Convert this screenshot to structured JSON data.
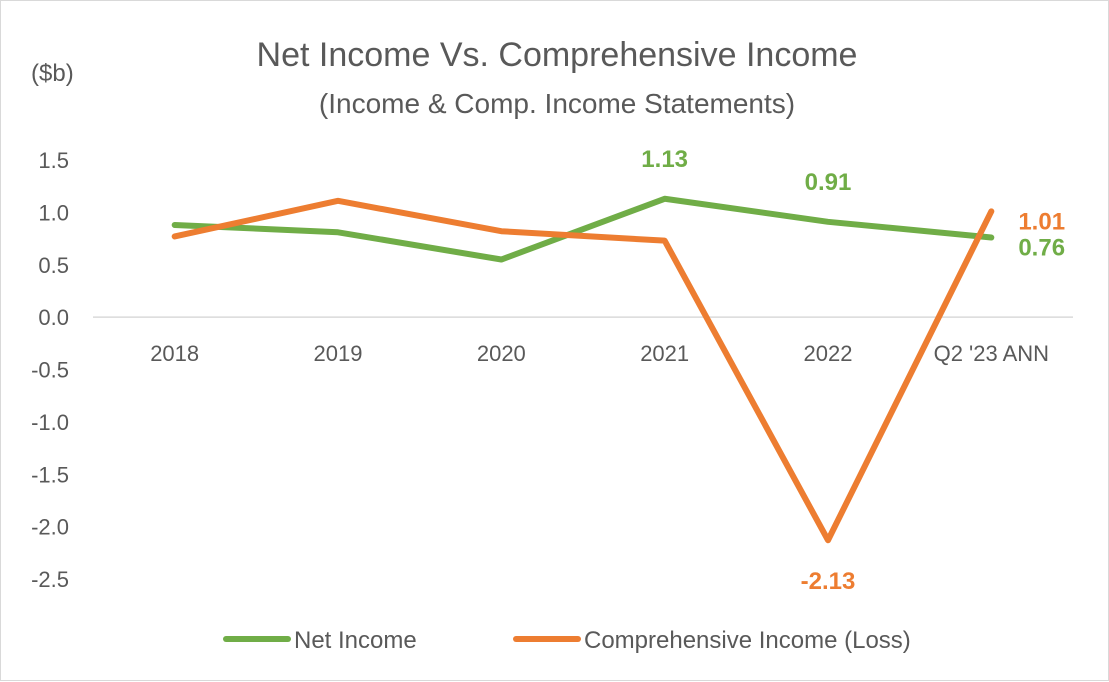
{
  "chart_data": {
    "type": "line",
    "title": "Net Income Vs. Comprehensive Income",
    "subtitle": "(Income & Comp. Income Statements)",
    "ylabel": "($b)",
    "xlabel": "",
    "categories": [
      "2018",
      "2019",
      "2020",
      "2021",
      "2022",
      "Q2 '23 ANN"
    ],
    "ylim": [
      -2.5,
      1.5
    ],
    "yticks": [
      1.5,
      1.0,
      0.5,
      0.0,
      -0.5,
      -1.0,
      -1.5,
      -2.0,
      -2.5
    ],
    "ytick_labels": [
      "1.5",
      "1.0",
      "0.5",
      "0.0",
      "-0.5",
      "-1.0",
      "-1.5",
      "-2.0",
      "-2.5"
    ],
    "grid": false,
    "legend_position": "bottom",
    "series": [
      {
        "name": "Net Income",
        "color": "#70ad47",
        "values": [
          0.88,
          0.81,
          0.55,
          1.13,
          0.91,
          0.76
        ],
        "data_labels": [
          null,
          null,
          null,
          "1.13",
          "0.91",
          "0.76"
        ]
      },
      {
        "name": "Comprehensive Income (Loss)",
        "color": "#ed7d31",
        "values": [
          0.77,
          1.11,
          0.82,
          0.73,
          -2.13,
          1.01
        ],
        "data_labels": [
          null,
          null,
          null,
          null,
          "-2.13",
          "1.01"
        ]
      }
    ]
  }
}
